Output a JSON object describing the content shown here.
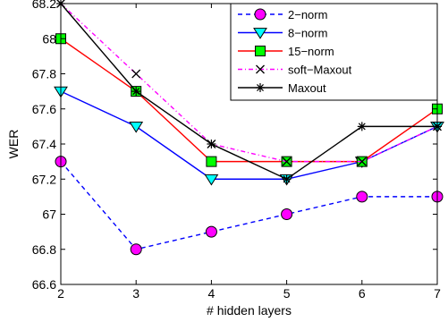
{
  "chart_data": {
    "type": "line",
    "title": "",
    "xlabel": "# hidden layers",
    "ylabel": "WER",
    "xlim": [
      2,
      7
    ],
    "ylim": [
      66.6,
      68.2
    ],
    "x": [
      2,
      3,
      4,
      5,
      6,
      7
    ],
    "x_ticks": [
      "2",
      "3",
      "4",
      "5",
      "6",
      "7"
    ],
    "y_ticks": [
      "66.6",
      "66.8",
      "67",
      "67.2",
      "67.4",
      "67.6",
      "67.8",
      "68",
      "68.2"
    ],
    "y_tick_values": [
      66.6,
      66.8,
      67.0,
      67.2,
      67.4,
      67.6,
      67.8,
      68.0,
      68.2
    ],
    "grid": false,
    "legend_position": "top-right",
    "series": [
      {
        "name": "2−norm",
        "values": [
          67.3,
          66.8,
          66.9,
          67.0,
          67.1,
          67.1
        ],
        "color": "#0000ff",
        "dash": "dashed",
        "marker": "circle",
        "marker_fill": "#ff00ff"
      },
      {
        "name": "8−norm",
        "values": [
          67.7,
          67.5,
          67.2,
          67.2,
          67.3,
          67.5
        ],
        "color": "#0000ff",
        "dash": "solid",
        "marker": "triangle-down",
        "marker_fill": "#00ffff"
      },
      {
        "name": "15−norm",
        "values": [
          68.0,
          67.7,
          67.3,
          67.3,
          67.3,
          67.6
        ],
        "color": "#ff0000",
        "dash": "solid",
        "marker": "square",
        "marker_fill": "#00ff00"
      },
      {
        "name": "soft−Maxout",
        "values": [
          68.2,
          67.8,
          67.4,
          67.3,
          67.3,
          67.5
        ],
        "color": "#ff00ff",
        "dash": "dashdot",
        "marker": "x",
        "marker_fill": "none"
      },
      {
        "name": "Maxout",
        "values": [
          68.2,
          67.7,
          67.4,
          67.2,
          67.5,
          67.5
        ],
        "color": "#000000",
        "dash": "solid",
        "marker": "star",
        "marker_fill": "none"
      }
    ]
  }
}
